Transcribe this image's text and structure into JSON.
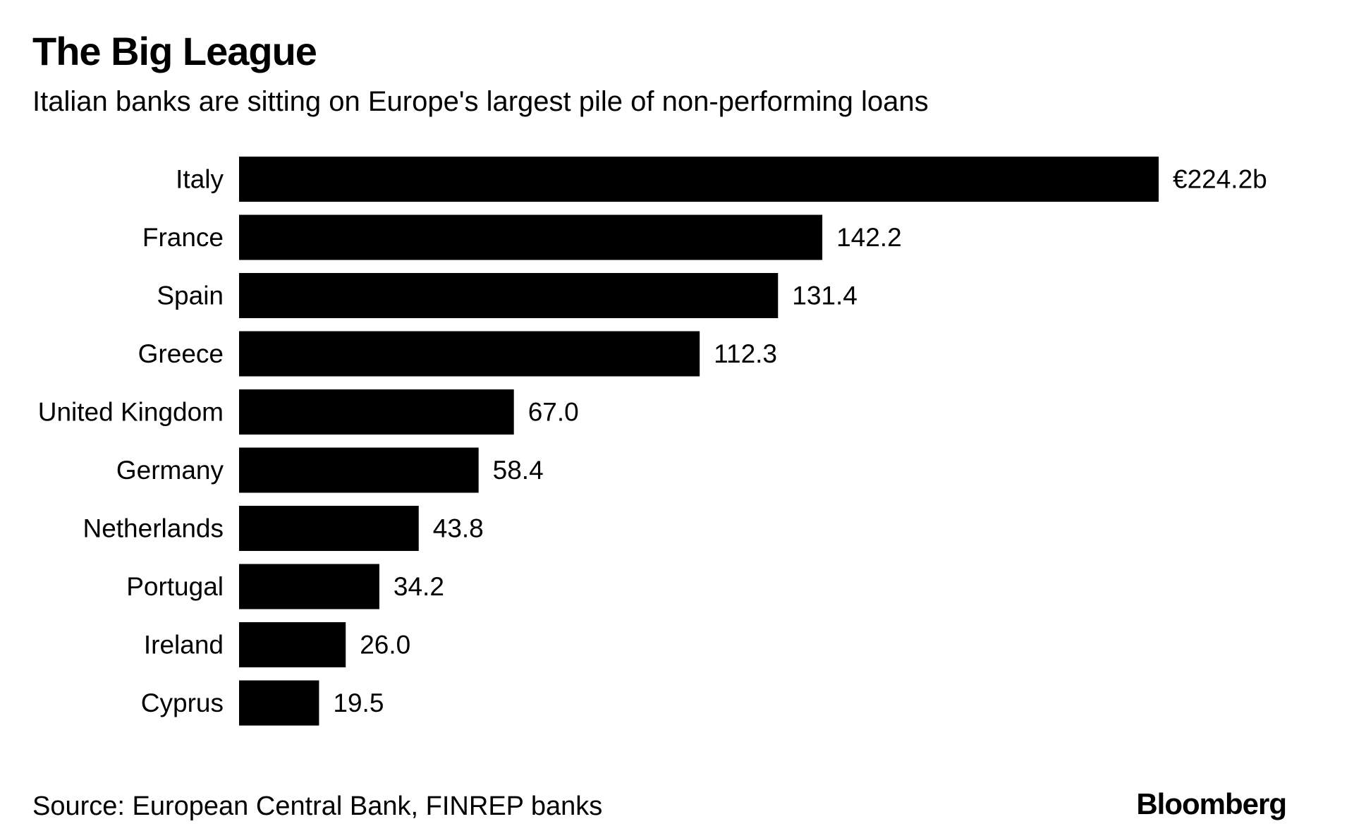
{
  "header": {
    "title": "The Big League",
    "subtitle": "Italian banks are sitting on Europe's largest pile of non-performing loans"
  },
  "chart_data": {
    "type": "bar",
    "orientation": "horizontal",
    "title": "The Big League",
    "subtitle": "Italian banks are sitting on Europe's largest pile of non-performing loans",
    "xlabel": "",
    "ylabel": "",
    "categories": [
      "Italy",
      "France",
      "Spain",
      "Greece",
      "United Kingdom",
      "Germany",
      "Netherlands",
      "Portugal",
      "Ireland",
      "Cyprus"
    ],
    "values": [
      224.2,
      142.2,
      131.4,
      112.3,
      67.0,
      58.4,
      43.8,
      34.2,
      26.0,
      19.5
    ],
    "value_labels": [
      "€224.2b",
      "142.2",
      "131.4",
      "112.3",
      "67.0",
      "58.4",
      "43.8",
      "34.2",
      "26.0",
      "19.5"
    ],
    "unit": "€ billion",
    "xlim": [
      0,
      224.2
    ],
    "grid": false,
    "legend": "none",
    "bar_color": "#000000"
  },
  "footer": {
    "source": "Source: European Central Bank, FINREP banks",
    "brand": "Bloomberg"
  }
}
